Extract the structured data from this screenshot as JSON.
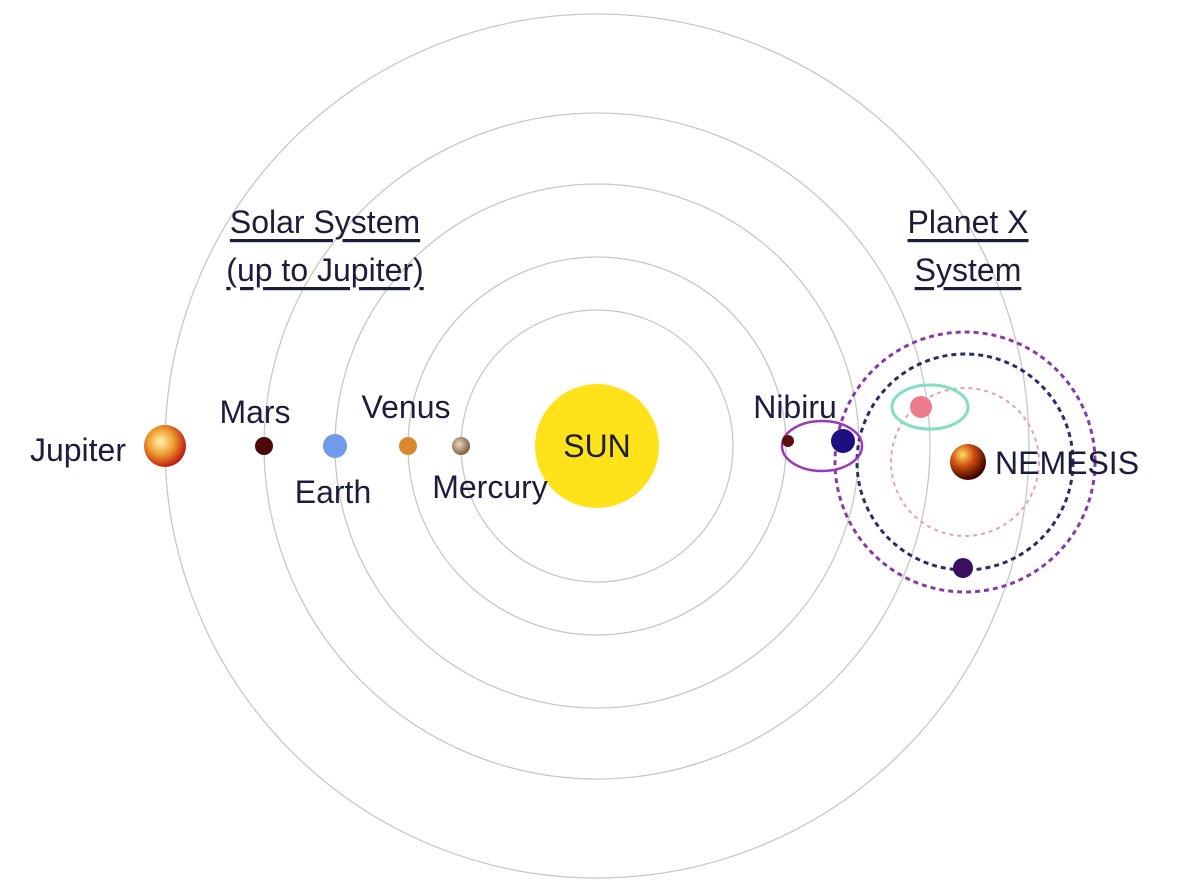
{
  "headings": {
    "solar_system": [
      "Solar System",
      "(up to Jupiter)"
    ],
    "planet_x_system": [
      "Planet X",
      "System"
    ]
  },
  "labels": {
    "jupiter": "Jupiter",
    "mars": "Mars",
    "earth": "Earth",
    "venus": "Venus",
    "mercury": "Mercury",
    "sun": "SUN",
    "nibiru": "Nibiru",
    "nemesis": "NEMESIS"
  }
}
